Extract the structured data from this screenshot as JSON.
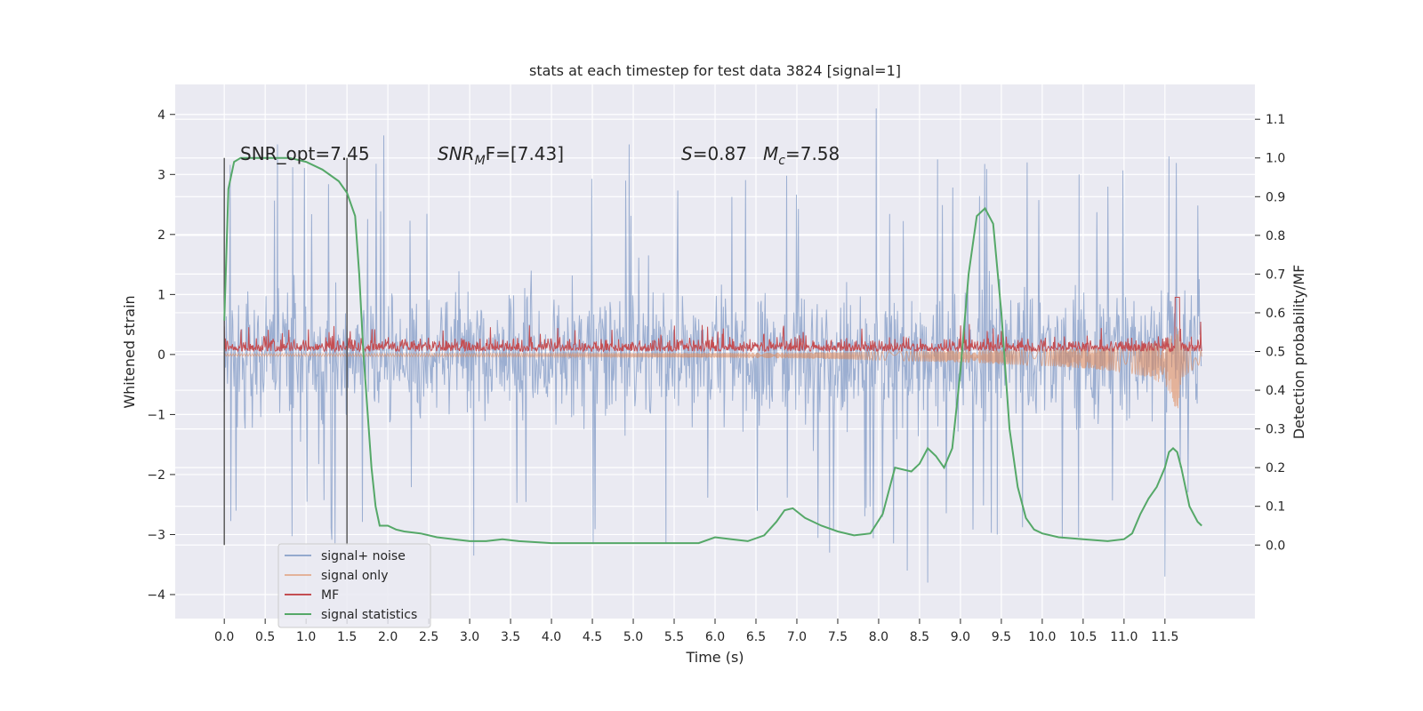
{
  "chart_data": {
    "type": "line",
    "title": "stats at each timestep for test data 3824 [signal=1]",
    "xlabel": "Time (s)",
    "ylabel": "Whitened strain",
    "y2label": "Detection probability/MF",
    "xlim": [
      -0.6,
      12.6
    ],
    "ylim": [
      -4.4,
      4.5
    ],
    "y2lim": [
      -0.19,
      1.19
    ],
    "xticks": [
      0.0,
      0.5,
      1.0,
      1.5,
      2.0,
      2.5,
      3.0,
      3.5,
      4.0,
      4.5,
      5.0,
      5.5,
      6.0,
      6.5,
      7.0,
      7.5,
      8.0,
      8.5,
      9.0,
      9.5,
      10.0,
      10.5,
      11.0,
      11.5
    ],
    "xtick_labels": [
      "0.0",
      "0.5",
      "1.0",
      "1.5",
      "2.0",
      "2.5",
      "3.0",
      "3.5",
      "4.0",
      "4.5",
      "5.0",
      "5.5",
      "6.0",
      "6.5",
      "7.0",
      "7.5",
      "8.0",
      "8.5",
      "9.0",
      "9.5",
      "10.0",
      "10.5",
      "11.0",
      "11.5"
    ],
    "yticks": [
      -4,
      -3,
      -2,
      -1,
      0,
      1,
      2,
      3,
      4
    ],
    "ytick_labels": [
      "−4",
      "−3",
      "−2",
      "−1",
      "0",
      "1",
      "2",
      "3",
      "4"
    ],
    "y2ticks": [
      0.0,
      0.1,
      0.2,
      0.3,
      0.4,
      0.5,
      0.6,
      0.7,
      0.8,
      0.9,
      1.0,
      1.1
    ],
    "y2tick_labels": [
      "0.0",
      "0.1",
      "0.2",
      "0.3",
      "0.4",
      "0.5",
      "0.6",
      "0.7",
      "0.8",
      "0.9",
      "1.0",
      "1.1"
    ],
    "grid": true,
    "legend_position": "bottom-left",
    "duration": 11.95,
    "series": [
      {
        "name": "signal+ noise",
        "color": "#4c72b0",
        "axis": "left",
        "description": "dense noisy strain, roughly ±1.5 with spikes to about ±3.5",
        "typical_range": [
          -1.5,
          1.5
        ],
        "spikes": [
          [
            1.95,
            3.65
          ],
          [
            0.65,
            3.5
          ],
          [
            4.95,
            3.5
          ],
          [
            7.97,
            4.1
          ],
          [
            8.72,
            3.25
          ],
          [
            11.55,
            3.3
          ],
          [
            10.45,
            3.0
          ],
          [
            3.05,
            -3.35
          ],
          [
            5.4,
            -3.15
          ],
          [
            7.4,
            -3.3
          ],
          [
            8.35,
            -3.6
          ],
          [
            8.6,
            -3.8
          ],
          [
            11.5,
            -3.7
          ],
          [
            9.45,
            -3.0
          ]
        ]
      },
      {
        "name": "signal only",
        "color": "#dd8452",
        "axis": "left",
        "description": "clean chirp, near zero then growing amplitude towards merger at about 11.65 s",
        "envelope": [
          [
            0.0,
            0.02
          ],
          [
            4.0,
            0.03
          ],
          [
            6.0,
            0.04
          ],
          [
            7.0,
            0.05
          ],
          [
            8.0,
            0.07
          ],
          [
            9.0,
            0.1
          ],
          [
            10.0,
            0.14
          ],
          [
            10.5,
            0.17
          ],
          [
            11.0,
            0.22
          ],
          [
            11.3,
            0.28
          ],
          [
            11.5,
            0.38
          ],
          [
            11.6,
            0.55
          ],
          [
            11.65,
            0.78
          ],
          [
            11.7,
            0.3
          ],
          [
            11.95,
            0.1
          ]
        ]
      },
      {
        "name": "MF",
        "color": "#c44e52",
        "axis": "right",
        "description": "matched filter output, noisy band near 0.5 with a peak near 0.63 at merger",
        "baseline": 0.5,
        "band": [
          0.49,
          0.57
        ],
        "peak": [
          11.65,
          0.64
        ]
      },
      {
        "name": "signal statistics",
        "color": "#55a868",
        "axis": "right",
        "x": [
          0.0,
          0.05,
          0.12,
          0.2,
          0.4,
          0.8,
          1.0,
          1.2,
          1.4,
          1.5,
          1.6,
          1.65,
          1.7,
          1.75,
          1.8,
          1.85,
          1.9,
          2.0,
          2.1,
          2.2,
          2.4,
          2.6,
          2.8,
          3.0,
          3.2,
          3.4,
          3.6,
          4.0,
          4.5,
          5.0,
          5.5,
          5.8,
          6.0,
          6.2,
          6.4,
          6.6,
          6.75,
          6.85,
          6.95,
          7.1,
          7.3,
          7.5,
          7.7,
          7.9,
          8.05,
          8.2,
          8.4,
          8.5,
          8.6,
          8.7,
          8.8,
          8.9,
          9.0,
          9.1,
          9.2,
          9.3,
          9.4,
          9.5,
          9.6,
          9.7,
          9.8,
          9.9,
          10.0,
          10.2,
          10.5,
          10.8,
          11.0,
          11.1,
          11.2,
          11.3,
          11.4,
          11.5,
          11.55,
          11.6,
          11.65,
          11.7,
          11.75,
          11.8,
          11.9,
          11.95
        ],
        "values": [
          0.58,
          0.92,
          0.99,
          1.0,
          1.0,
          1.0,
          0.99,
          0.97,
          0.94,
          0.91,
          0.85,
          0.7,
          0.5,
          0.35,
          0.2,
          0.1,
          0.05,
          0.05,
          0.04,
          0.035,
          0.03,
          0.02,
          0.015,
          0.01,
          0.01,
          0.015,
          0.01,
          0.005,
          0.005,
          0.005,
          0.005,
          0.005,
          0.02,
          0.015,
          0.01,
          0.025,
          0.06,
          0.09,
          0.095,
          0.07,
          0.05,
          0.035,
          0.025,
          0.03,
          0.08,
          0.2,
          0.19,
          0.21,
          0.25,
          0.23,
          0.2,
          0.25,
          0.45,
          0.7,
          0.85,
          0.87,
          0.83,
          0.6,
          0.3,
          0.15,
          0.07,
          0.04,
          0.03,
          0.02,
          0.015,
          0.01,
          0.015,
          0.03,
          0.08,
          0.12,
          0.15,
          0.2,
          0.24,
          0.25,
          0.24,
          0.2,
          0.15,
          0.1,
          0.06,
          0.05
        ]
      }
    ],
    "vertical_lines": [
      {
        "x": 0.0,
        "y2_range": [
          0.0,
          1.0
        ]
      },
      {
        "x": 1.5,
        "y2_range": [
          0.0,
          1.0
        ]
      }
    ],
    "annotations": [
      {
        "text": "SNR_opt=7.45"
      },
      {
        "text": "SNR",
        "sub": "M",
        "tail": "F=[7.43]"
      },
      {
        "text": "S",
        "tail": "=0.87"
      },
      {
        "text": "M",
        "sub": "c",
        "tail": "=7.58"
      }
    ]
  }
}
